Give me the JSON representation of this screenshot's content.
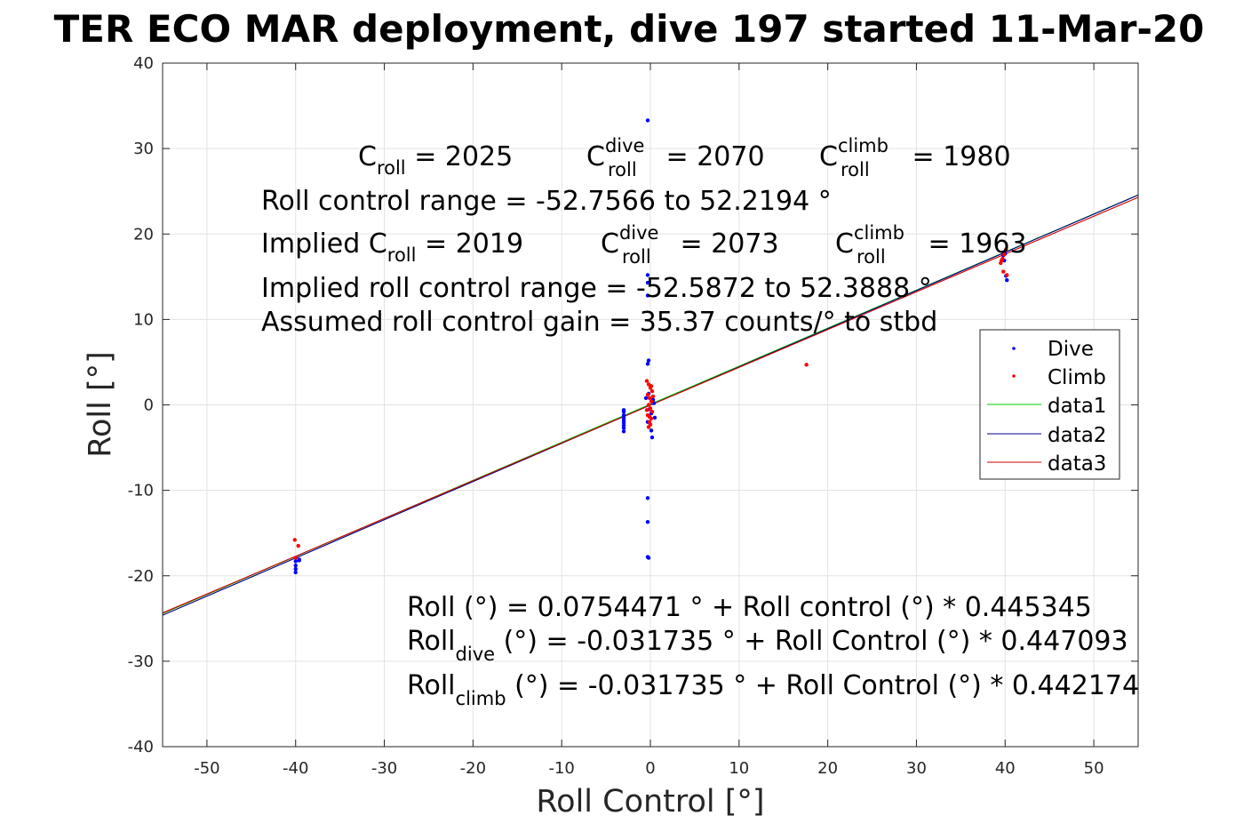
{
  "chart_data": {
    "type": "scatter",
    "title": "TER ECO MAR deployment, dive 197 started 11-Mar-20",
    "xlabel": "Roll Control [°]",
    "ylabel": "Roll [°]",
    "xlim": [
      -55,
      55
    ],
    "ylim": [
      -40,
      40
    ],
    "xticks": [
      -50,
      -40,
      -30,
      -20,
      -10,
      0,
      10,
      20,
      30,
      40,
      50
    ],
    "yticks": [
      -40,
      -30,
      -20,
      -10,
      0,
      10,
      20,
      30,
      40
    ],
    "grid": true,
    "legend_position": "right",
    "legend": [
      "Dive",
      "Climb",
      "data1",
      "data2",
      "data3"
    ],
    "colors": {
      "dive": "#0000ff",
      "climb": "#ff0000",
      "data1": "#00cc00",
      "data2": "#000080",
      "data3": "#cc0000"
    },
    "series": [
      {
        "name": "Dive",
        "kind": "points",
        "x": [
          -0.3,
          -0.3,
          -0.3,
          -0.3,
          -0.2,
          -0.3,
          -0.3,
          -0.3,
          -0.3,
          -0.2,
          -0.1,
          0.1,
          0.3,
          0.5,
          -0.5,
          -0.3,
          0.1,
          0.2,
          -0.2,
          0.4,
          -3,
          -3,
          -3,
          -3,
          -3,
          -3,
          -3,
          -3,
          -3,
          -40,
          -40,
          -40,
          -40,
          -39.6,
          -39.6,
          39.8,
          40,
          40.2,
          40.1,
          39.9
        ],
        "y": [
          33.3,
          15.2,
          14.3,
          12.8,
          5.2,
          4.8,
          -10.9,
          -13.7,
          -17.8,
          -17.9,
          -0.5,
          -1,
          0.6,
          -1.5,
          0.8,
          -2,
          -3,
          -3.8,
          1.3,
          0.2,
          -0.8,
          -1.2,
          -1.5,
          -1.8,
          -2.1,
          -2.4,
          -2.7,
          -3.1,
          -0.6,
          -18.3,
          -18.8,
          -19.2,
          -19.6,
          -18.2,
          -18.1,
          17.5,
          17.7,
          14.6,
          15.1,
          16.9
        ]
      },
      {
        "name": "Climb",
        "kind": "points",
        "x": [
          -0.4,
          -0.2,
          0,
          0.2,
          -0.3,
          -0.1,
          0.1,
          -0.2,
          0,
          0.2,
          -0.3,
          0.1,
          -0.1,
          0,
          -0.2,
          0.3,
          -0.4,
          0.1,
          -0.1,
          -40.1,
          -39.7,
          -40,
          39.5,
          39.7,
          39.9,
          40.1,
          39.8,
          40.2,
          39.6,
          17.6
        ],
        "y": [
          2.8,
          2.4,
          2.0,
          1.6,
          1.2,
          0.8,
          0.4,
          0,
          -0.4,
          -0.8,
          -1.2,
          -1.6,
          -2.0,
          -2.3,
          -2.6,
          1.0,
          -0.6,
          2.2,
          -1.4,
          -15.8,
          -16.5,
          -17.9,
          16.6,
          17.1,
          17.6,
          18.2,
          15.6,
          15.2,
          16.9,
          4.7
        ]
      },
      {
        "name": "data1",
        "kind": "line",
        "x": [
          -55,
          55
        ],
        "y": [
          -24.42,
          24.57
        ]
      },
      {
        "name": "data2",
        "kind": "line",
        "x": [
          -55,
          55
        ],
        "y": [
          -24.62,
          24.56
        ]
      },
      {
        "name": "data3",
        "kind": "line",
        "x": [
          -55,
          55
        ],
        "y": [
          -24.35,
          24.29
        ]
      }
    ],
    "annotations": {
      "c_roll_line": {
        "c_label": "C",
        "c_sub": "roll",
        "c_val": " = 2025",
        "dive_label": "C",
        "dive_sup": "dive",
        "dive_sub": "roll",
        "dive_val": " = 2070",
        "climb_label": "C",
        "climb_sup": "climb",
        "climb_sub": "roll",
        "climb_val": " = 1980"
      },
      "roll_control_range": "Roll control range = -52.7566 to 52.2194 °",
      "implied_c_line": {
        "c_label": "Implied C",
        "c_sub": "roll",
        "c_val": " = 2019",
        "dive_label": "C",
        "dive_sup": "dive",
        "dive_sub": "roll",
        "dive_val": " = 2073",
        "climb_label": "C",
        "climb_sup": "climb",
        "climb_sub": "roll",
        "climb_val": " = 1963"
      },
      "implied_range": "Implied roll control range = -52.5872 to 52.3888 °",
      "gain": "Assumed roll control gain = 35.37 counts/° to stbd",
      "fit_all": "Roll (°) = 0.0754471 ° + Roll control (°) * 0.445345",
      "fit_dive": {
        "main": "Roll",
        "sub": "dive",
        "rest": " (°) = -0.031735 ° + Roll Control (°) * 0.447093"
      },
      "fit_climb": {
        "main": "Roll",
        "sub": "climb",
        "rest": " (°) = -0.031735 ° + Roll Control (°) * 0.442174"
      }
    }
  }
}
